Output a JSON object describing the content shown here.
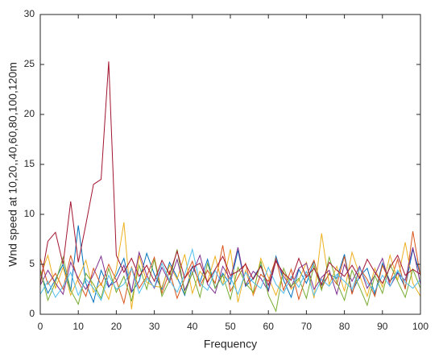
{
  "chart_data": {
    "type": "line",
    "x_label": "Frequency",
    "y_label": "Wnd speed at 10,20,,40,60,80,100,120m",
    "x": [
      0,
      2,
      4,
      6,
      8,
      10,
      12,
      14,
      16,
      18,
      20,
      22,
      24,
      26,
      28,
      30,
      32,
      34,
      36,
      38,
      40,
      42,
      44,
      46,
      48,
      50,
      52,
      54,
      56,
      58,
      60,
      62,
      64,
      66,
      68,
      70,
      72,
      74,
      76,
      78,
      80,
      82,
      84,
      86,
      88,
      90,
      92,
      94,
      96,
      98,
      100
    ],
    "xlim": [
      0,
      100
    ],
    "xticks": [
      0,
      10,
      20,
      30,
      40,
      50,
      60,
      70,
      80,
      90,
      100
    ],
    "ylim": [
      0,
      30
    ],
    "yticks": [
      0,
      5,
      10,
      15,
      20,
      25,
      30
    ],
    "series": [
      {
        "color": "#0072BD",
        "values": [
          4.2,
          2.1,
          3.5,
          5.0,
          2.3,
          8.9,
          3.1,
          1.2,
          4.4,
          2.7,
          3.9,
          5.6,
          2.2,
          3.3,
          6.1,
          4.0,
          2.5,
          5.2,
          3.7,
          1.9,
          4.8,
          3.2,
          5.5,
          2.6,
          4.1,
          3.0,
          6.4,
          2.8,
          3.6,
          4.9,
          2.4,
          5.8,
          3.4,
          1.7,
          4.5,
          3.1,
          5.3,
          2.9,
          4.0,
          3.6,
          6.0,
          2.2,
          3.8,
          4.6,
          2.0,
          5.1,
          3.3,
          4.2,
          2.7,
          6.5,
          3.9
        ]
      },
      {
        "color": "#D95319",
        "values": [
          5.6,
          3.0,
          4.1,
          2.5,
          5.9,
          3.3,
          1.8,
          4.6,
          2.9,
          5.0,
          3.4,
          1.1,
          4.7,
          2.6,
          3.8,
          5.7,
          2.1,
          4.3,
          1.6,
          3.6,
          5.3,
          2.8,
          4.4,
          3.1,
          6.9,
          2.3,
          3.7,
          5.1,
          1.9,
          4.0,
          3.3,
          5.6,
          2.4,
          4.5,
          1.5,
          3.9,
          5.4,
          2.6,
          4.1,
          3.0,
          5.8,
          2.0,
          4.6,
          3.5,
          1.8,
          4.9,
          3.2,
          5.5,
          2.5,
          8.3,
          3.8
        ]
      },
      {
        "color": "#EDB120",
        "values": [
          3.8,
          5.9,
          2.6,
          4.7,
          1.9,
          3.6,
          5.4,
          2.2,
          3.1,
          1.5,
          4.5,
          9.2,
          0.5,
          5.9,
          3.2,
          2.8,
          2.7,
          4.9,
          3.5,
          6.0,
          2.1,
          4.3,
          3.3,
          5.8,
          2.9,
          6.5,
          1.2,
          4.4,
          2.0,
          5.6,
          3.7,
          1.9,
          4.2,
          2.5,
          3.4,
          5.2,
          1.6,
          8.1,
          3.0,
          4.8,
          2.3,
          6.2,
          3.9,
          1.8,
          4.6,
          2.7,
          5.9,
          3.4,
          7.2,
          3.1,
          1.8
        ]
      },
      {
        "color": "#7E2F8E",
        "values": [
          2.9,
          4.4,
          3.1,
          2.0,
          5.2,
          3.6,
          2.5,
          4.0,
          5.8,
          2.8,
          3.3,
          4.9,
          2.2,
          6.2,
          3.9,
          2.6,
          4.7,
          3.2,
          5.5,
          2.4,
          4.1,
          5.9,
          3.0,
          2.1,
          4.8,
          3.5,
          6.7,
          2.9,
          4.3,
          3.6,
          2.3,
          5.4,
          3.8,
          2.7,
          4.6,
          5.1,
          2.5,
          3.7,
          4.4,
          2.0,
          5.0,
          3.3,
          4.8,
          2.6,
          3.9,
          5.6,
          2.8,
          4.1,
          3.4,
          6.7,
          3.0
        ]
      },
      {
        "color": "#77AC30",
        "values": [
          4.5,
          1.4,
          3.2,
          5.7,
          2.4,
          1.0,
          4.1,
          3.0,
          1.6,
          4.6,
          2.2,
          3.8,
          1.3,
          4.9,
          2.5,
          5.5,
          1.8,
          3.4,
          6.5,
          2.0,
          4.2,
          1.7,
          5.1,
          2.6,
          3.9,
          1.5,
          4.7,
          3.1,
          2.2,
          5.3,
          1.9,
          0.3,
          4.6,
          2.8,
          3.6,
          1.6,
          4.9,
          2.4,
          5.7,
          3.2,
          1.4,
          4.4,
          2.7,
          0.9,
          3.9,
          2.1,
          5.0,
          3.3,
          1.7,
          4.5,
          2.6
        ]
      },
      {
        "color": "#4DBEEE",
        "values": [
          2.0,
          3.3,
          1.7,
          2.8,
          4.2,
          1.9,
          3.5,
          2.6,
          1.4,
          3.9,
          2.5,
          3.0,
          4.6,
          2.1,
          3.6,
          2.7,
          5.1,
          3.4,
          2.2,
          4.0,
          6.5,
          3.1,
          2.4,
          4.4,
          2.9,
          3.7,
          2.0,
          4.2,
          3.2,
          2.6,
          4.7,
          3.0,
          2.1,
          3.8,
          2.7,
          4.3,
          1.9,
          3.5,
          2.8,
          4.0,
          3.3,
          2.5,
          4.6,
          3.1,
          2.3,
          3.9,
          2.8,
          4.4,
          3.2,
          2.6,
          3.5
        ]
      },
      {
        "color": "#A2142F",
        "values": [
          3.0,
          7.3,
          8.2,
          5.0,
          11.3,
          5.2,
          9.0,
          13.0,
          13.5,
          25.3,
          5.9,
          4.2,
          5.6,
          3.8,
          4.9,
          3.3,
          5.4,
          4.0,
          6.3,
          3.6,
          4.7,
          5.1,
          3.2,
          4.5,
          5.8,
          3.9,
          4.3,
          5.0,
          3.5,
          4.8,
          2.9,
          5.3,
          4.1,
          3.4,
          5.6,
          3.7,
          4.6,
          3.0,
          5.2,
          4.4,
          3.8,
          4.9,
          3.6,
          5.5,
          4.2,
          3.1,
          4.7,
          5.9,
          3.9,
          4.5,
          4.0
        ]
      }
    ]
  }
}
